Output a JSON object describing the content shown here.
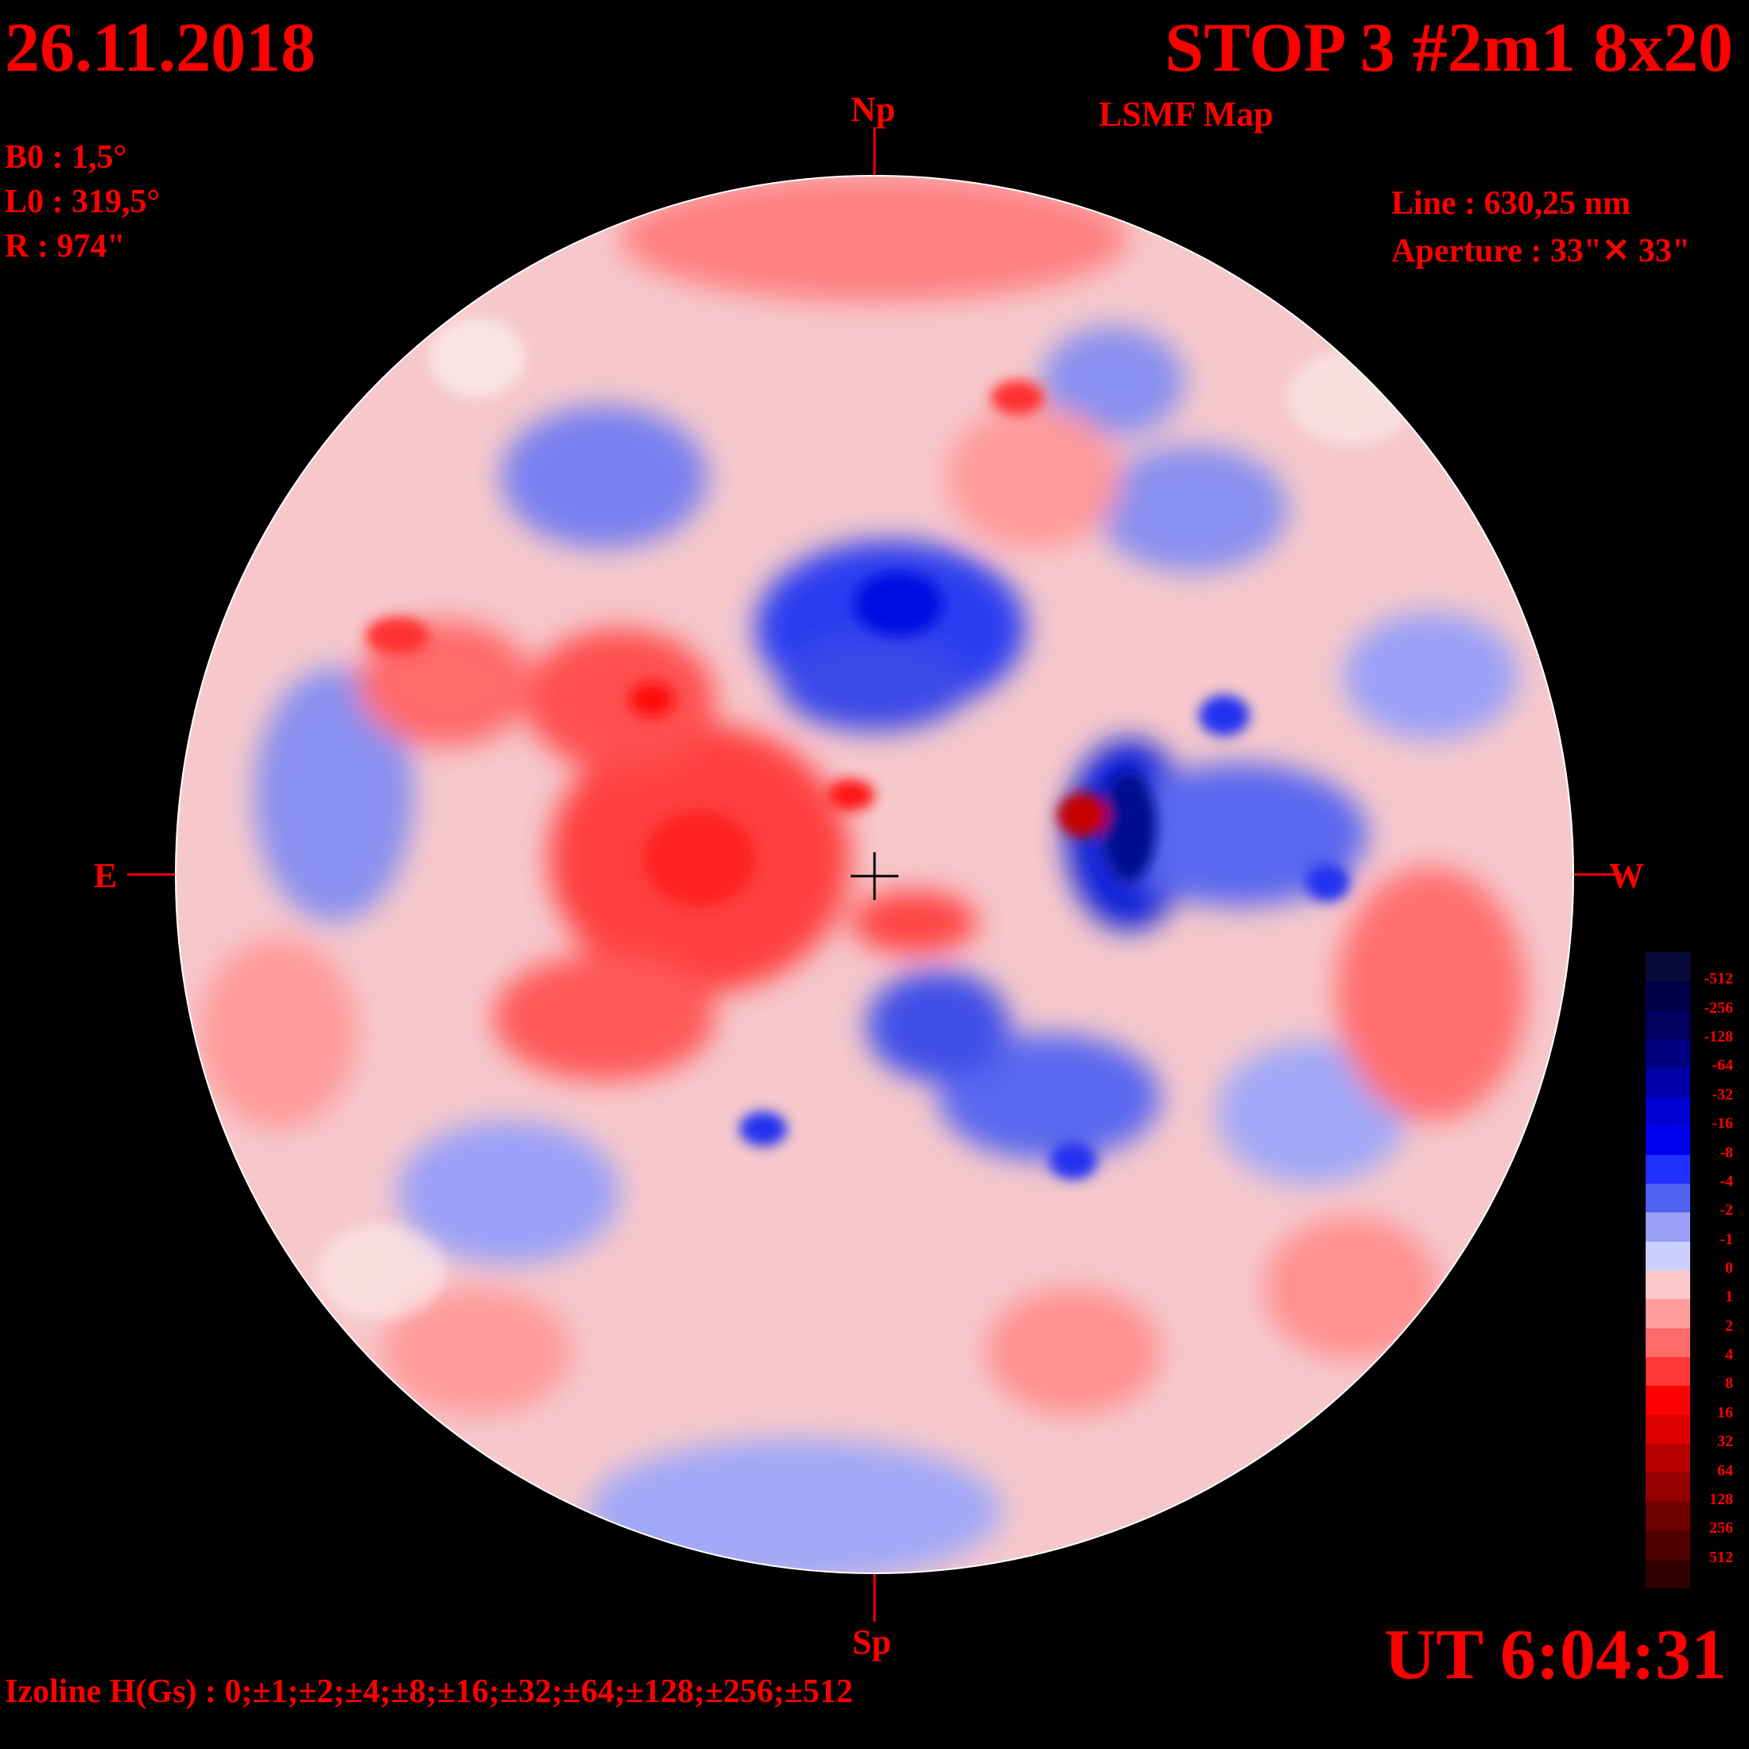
{
  "header": {
    "date": "26.11.2018",
    "title": "STOP 3 #2m1 8x20",
    "map_type": "LSMF  Map"
  },
  "params": {
    "b0": "B0 : 1,5°",
    "l0": "L0 : 319,5°",
    "r": "R  : 974\"",
    "line": "Line :  630,25 nm",
    "aperture": "Aperture : 33\"✕ 33\""
  },
  "directions": {
    "north": "Np",
    "south": "Sp",
    "east": "E",
    "west": "W"
  },
  "footer": {
    "ut": "UT 6:04:31",
    "izoline": "Izoline H(Gs) : 0;±1;±2;±4;±8;±16;±32;±64;±128;±256;±512"
  },
  "colorbar": {
    "ticks": [
      "-512",
      "-256",
      "-128",
      "-64",
      "-32",
      "-16",
      "-8",
      "-4",
      "-2",
      "-1",
      "0",
      "1",
      "2",
      "4",
      "8",
      "16",
      "32",
      "64",
      "128",
      "256",
      "512"
    ],
    "colors": [
      "#0a0a3a",
      "#00004a",
      "#000060",
      "#000080",
      "#0000a8",
      "#0000d0",
      "#0000f0",
      "#2030ff",
      "#5060f0",
      "#9aa0f8",
      "#ccd0ff",
      "#ffc8c8",
      "#ff9c9c",
      "#ff6a6a",
      "#ff3838",
      "#ff0000",
      "#dd0000",
      "#b80000",
      "#940000",
      "#700000",
      "#500000",
      "#300000"
    ]
  }
}
